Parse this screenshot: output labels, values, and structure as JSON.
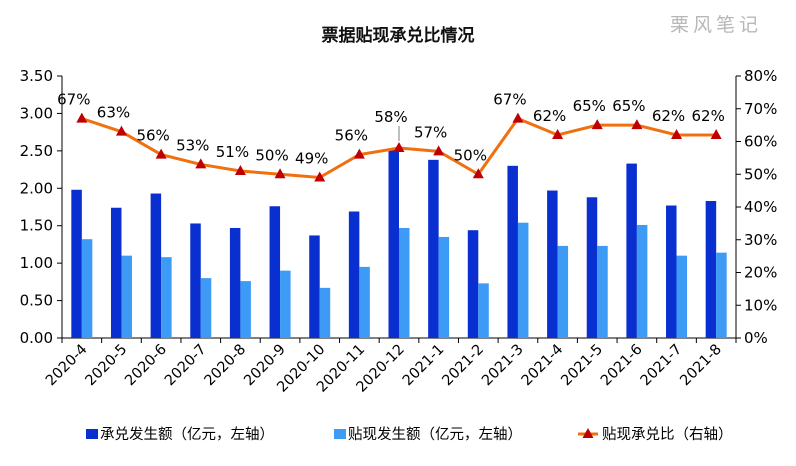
{
  "watermark": "栗风笔记",
  "chart_data": {
    "type": "bar",
    "title": "票据贴现承兑比情况",
    "categories": [
      "2020-4",
      "2020-5",
      "2020-6",
      "2020-7",
      "2020-8",
      "2020-9",
      "2020-10",
      "2020-11",
      "2020-12",
      "2021-1",
      "2021-2",
      "2021-3",
      "2021-4",
      "2021-5",
      "2021-6",
      "2021-7",
      "2021-8"
    ],
    "left_axis": {
      "min": 0,
      "max": 3.5,
      "step": 0.5,
      "decimals": 2
    },
    "right_axis": {
      "min": 0,
      "max": 80,
      "step": 10,
      "suffix": "%"
    },
    "grid": false,
    "legend_position": "bottom",
    "series": [
      {
        "name": "承兑发生额（亿元，左轴）",
        "type": "bar",
        "axis": "left",
        "color": "#0a2fd0",
        "values": [
          1.98,
          1.74,
          1.93,
          1.53,
          1.47,
          1.76,
          1.37,
          1.69,
          2.52,
          2.38,
          1.44,
          2.3,
          1.97,
          1.88,
          2.33,
          1.77,
          1.83
        ]
      },
      {
        "name": "贴现发生额（亿元，左轴）",
        "type": "bar",
        "axis": "left",
        "color": "#3d9bf5",
        "values": [
          1.32,
          1.1,
          1.08,
          0.8,
          0.76,
          0.9,
          0.67,
          0.95,
          1.47,
          1.35,
          0.73,
          1.54,
          1.23,
          1.23,
          1.51,
          1.1,
          1.14
        ]
      },
      {
        "name": "贴现承兑比（右轴）",
        "type": "line",
        "axis": "right",
        "color": "#f07010",
        "marker_color": "#c00000",
        "values": [
          67,
          63,
          56,
          53,
          51,
          50,
          49,
          56,
          58,
          57,
          50,
          67,
          62,
          65,
          65,
          62,
          62
        ],
        "labels": [
          "67%",
          "63%",
          "56%",
          "53%",
          "51%",
          "50%",
          "49%",
          "56%",
          "58%",
          "57%",
          "50%",
          "67%",
          "62%",
          "65%",
          "65%",
          "62%",
          "62%"
        ]
      }
    ]
  }
}
